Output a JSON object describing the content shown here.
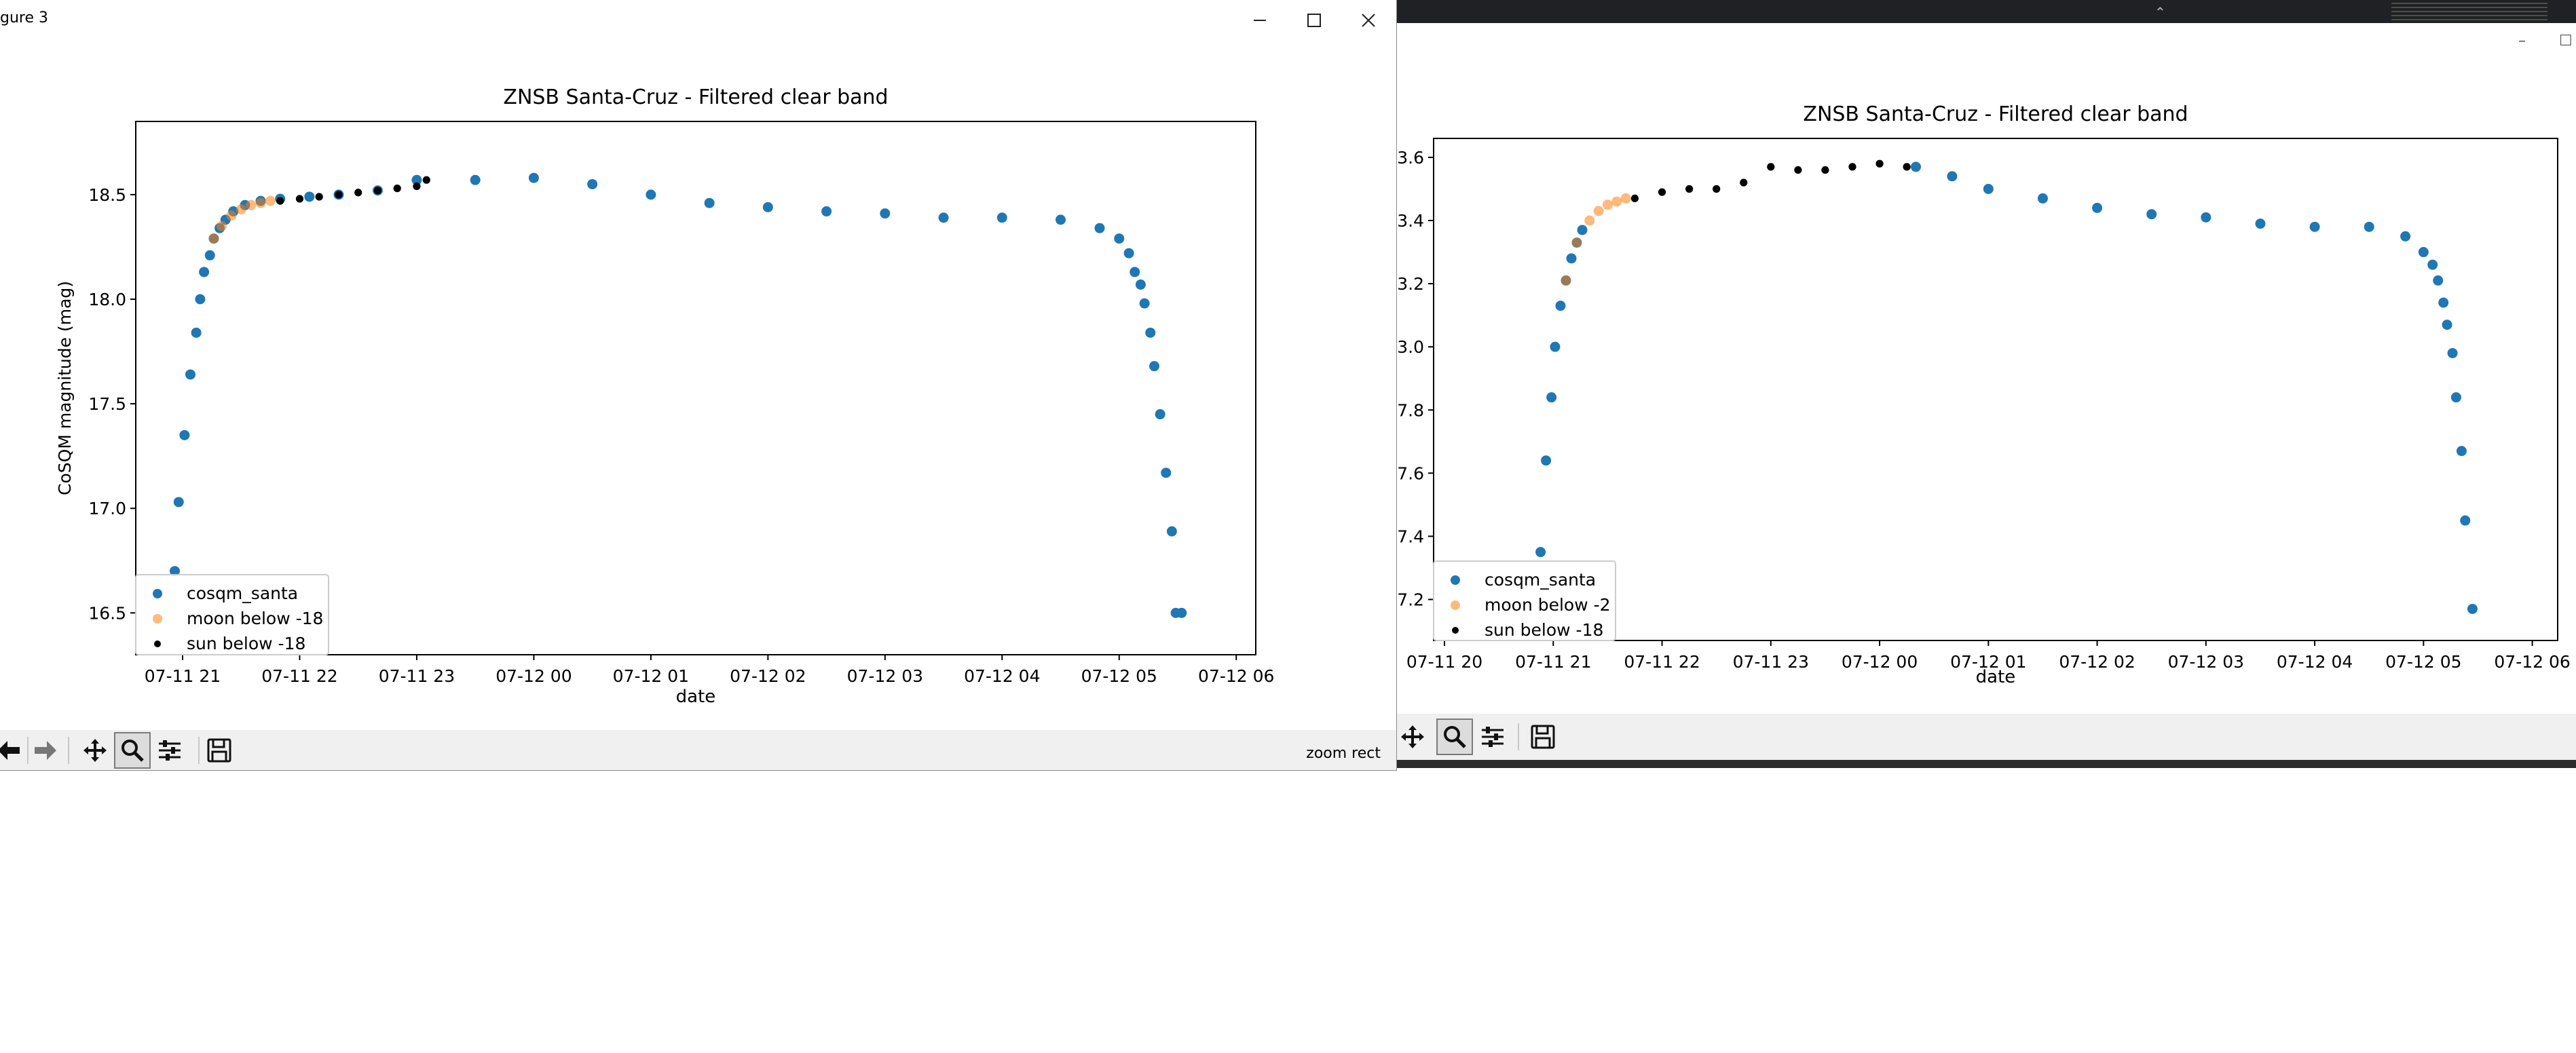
{
  "colors": {
    "series_blue": "#1f77b4",
    "series_orange": "#ff7f0e",
    "series_black": "#000000",
    "toolbar_bg": "#f0f0f0"
  },
  "main_window": {
    "title": "gure 3",
    "buttons": {
      "minimize_icon": "minimize-icon",
      "maximize_icon": "maximize-icon",
      "close_icon": "close-icon"
    },
    "toolbar": {
      "icons": [
        "back-arrow-icon",
        "forward-arrow-icon",
        "pan-move-icon",
        "zoom-magnifier-icon",
        "configure-subplots-icon",
        "save-disk-icon"
      ],
      "status": "zoom rect"
    }
  },
  "secondary_window": {
    "toolbar": {
      "icons": [
        "pan-move-icon",
        "zoom-magnifier-icon",
        "configure-subplots-icon",
        "save-disk-icon"
      ]
    }
  },
  "chart_data": [
    {
      "type": "scatter",
      "title": "ZNSB Santa-Cruz - Filtered clear band",
      "xlabel": "date",
      "ylabel": "CoSQM magnitude (mag)",
      "xlim": [
        "2021-07-11 20:36",
        "2021-07-12 06:10"
      ],
      "ylim": [
        16.3,
        18.85
      ],
      "x_ticks": [
        "07-11 21",
        "07-11 22",
        "07-11 23",
        "07-12 00",
        "07-12 01",
        "07-12 02",
        "07-12 03",
        "07-12 04",
        "07-12 05",
        "07-12 06"
      ],
      "y_ticks": [
        "16.5",
        "17.0",
        "17.5",
        "18.0",
        "18.5"
      ],
      "grid": false,
      "legend_placement": "lower-left",
      "series": [
        {
          "name": "cosqm_santa",
          "color": "#1f77b4",
          "x": [
            "2021-07-11 20:56",
            "2021-07-11 20:58",
            "2021-07-11 21:01",
            "2021-07-11 21:04",
            "2021-07-11 21:07",
            "2021-07-11 21:09",
            "2021-07-11 21:11",
            "2021-07-11 21:14",
            "2021-07-11 21:16",
            "2021-07-11 21:19",
            "2021-07-11 21:22",
            "2021-07-11 21:26",
            "2021-07-11 21:32",
            "2021-07-11 21:40",
            "2021-07-11 21:50",
            "2021-07-11 22:05",
            "2021-07-11 22:20",
            "2021-07-11 22:40",
            "2021-07-11 23:00",
            "2021-07-11 23:30",
            "2021-07-12 00:00",
            "2021-07-12 00:30",
            "2021-07-12 01:00",
            "2021-07-12 01:30",
            "2021-07-12 02:00",
            "2021-07-12 02:30",
            "2021-07-12 03:00",
            "2021-07-12 03:30",
            "2021-07-12 04:00",
            "2021-07-12 04:30",
            "2021-07-12 04:50",
            "2021-07-12 05:00",
            "2021-07-12 05:05",
            "2021-07-12 05:08",
            "2021-07-12 05:11",
            "2021-07-12 05:13",
            "2021-07-12 05:16",
            "2021-07-12 05:18",
            "2021-07-12 05:21",
            "2021-07-12 05:24",
            "2021-07-12 05:27",
            "2021-07-12 05:29",
            "2021-07-12 05:32"
          ],
          "y": [
            16.7,
            17.03,
            17.35,
            17.64,
            17.84,
            18.0,
            18.13,
            18.21,
            18.29,
            18.34,
            18.38,
            18.42,
            18.45,
            18.47,
            18.48,
            18.49,
            18.5,
            18.52,
            18.57,
            18.57,
            18.58,
            18.55,
            18.5,
            18.46,
            18.44,
            18.42,
            18.41,
            18.39,
            18.39,
            18.38,
            18.34,
            18.29,
            18.22,
            18.13,
            18.07,
            17.98,
            17.84,
            17.68,
            17.45,
            17.17,
            16.89,
            16.5,
            16.5
          ]
        },
        {
          "name": "moon below -18",
          "color": "#ff7f0e",
          "x": [
            "2021-07-11 21:16",
            "2021-07-11 21:20",
            "2021-07-11 21:25",
            "2021-07-11 21:30",
            "2021-07-11 21:35",
            "2021-07-11 21:40",
            "2021-07-11 21:45"
          ],
          "y": [
            18.29,
            18.35,
            18.4,
            18.43,
            18.45,
            18.46,
            18.47
          ]
        },
        {
          "name": "sun below -18",
          "color": "#000000",
          "x": [
            "2021-07-11 21:50",
            "2021-07-11 22:00",
            "2021-07-11 22:10",
            "2021-07-11 22:20",
            "2021-07-11 22:30",
            "2021-07-11 22:40",
            "2021-07-11 22:50",
            "2021-07-11 23:00",
            "2021-07-11 23:05"
          ],
          "y": [
            18.47,
            18.48,
            18.49,
            18.5,
            18.51,
            18.52,
            18.53,
            18.54,
            18.57
          ]
        }
      ]
    },
    {
      "type": "scatter",
      "title": "ZNSB Santa-Cruz - Filtered clear band",
      "xlabel": "date",
      "ylabel": "",
      "xlim": [
        "2021-07-11 19:54",
        "2021-07-12 06:14"
      ],
      "ylim": [
        17.07,
        18.66
      ],
      "x_ticks": [
        "07-11 20",
        "07-11 21",
        "07-11 22",
        "07-11 23",
        "07-12 00",
        "07-12 01",
        "07-12 02",
        "07-12 03",
        "07-12 04",
        "07-12 05",
        "07-12 06"
      ],
      "y_ticks": [
        "3.6",
        "3.4",
        "3.2",
        "3.0",
        "7.8",
        "7.6",
        "7.4",
        "7.2"
      ],
      "grid": false,
      "legend_placement": "lower-left",
      "series": [
        {
          "name": "cosqm_santa",
          "color": "#1f77b4",
          "x": [
            "2021-07-11 20:53",
            "2021-07-11 20:56",
            "2021-07-11 20:59",
            "2021-07-11 21:01",
            "2021-07-11 21:04",
            "2021-07-11 21:07",
            "2021-07-11 21:10",
            "2021-07-11 21:13",
            "2021-07-11 21:16",
            "2021-07-12 00:20",
            "2021-07-12 00:40",
            "2021-07-12 01:00",
            "2021-07-12 01:30",
            "2021-07-12 02:00",
            "2021-07-12 02:30",
            "2021-07-12 03:00",
            "2021-07-12 03:30",
            "2021-07-12 04:00",
            "2021-07-12 04:30",
            "2021-07-12 04:50",
            "2021-07-12 05:00",
            "2021-07-12 05:05",
            "2021-07-12 05:08",
            "2021-07-12 05:11",
            "2021-07-12 05:13",
            "2021-07-12 05:16",
            "2021-07-12 05:18",
            "2021-07-12 05:21",
            "2021-07-12 05:23",
            "2021-07-12 05:27"
          ],
          "y": [
            17.35,
            17.64,
            17.84,
            18.0,
            18.13,
            18.21,
            18.28,
            18.33,
            18.37,
            18.57,
            18.54,
            18.5,
            18.47,
            18.44,
            18.42,
            18.41,
            18.39,
            18.38,
            18.38,
            18.35,
            18.3,
            18.26,
            18.21,
            18.14,
            18.07,
            17.98,
            17.84,
            17.67,
            17.45,
            17.17
          ]
        },
        {
          "name": "moon below -2",
          "color": "#ff7f0e",
          "x": [
            "2021-07-11 21:07",
            "2021-07-11 21:13",
            "2021-07-11 21:20",
            "2021-07-11 21:25",
            "2021-07-11 21:30",
            "2021-07-11 21:35",
            "2021-07-11 21:40"
          ],
          "y": [
            18.21,
            18.33,
            18.4,
            18.43,
            18.45,
            18.46,
            18.47
          ]
        },
        {
          "name": "sun below -18",
          "color": "#000000",
          "x": [
            "2021-07-11 21:45",
            "2021-07-11 22:00",
            "2021-07-11 22:15",
            "2021-07-11 22:30",
            "2021-07-11 22:45",
            "2021-07-11 23:00",
            "2021-07-11 23:15",
            "2021-07-11 23:30",
            "2021-07-11 23:45",
            "2021-07-12 00:00",
            "2021-07-12 00:15"
          ],
          "y": [
            18.47,
            18.49,
            18.5,
            18.5,
            18.52,
            18.57,
            18.56,
            18.56,
            18.57,
            18.58,
            18.57
          ]
        }
      ]
    }
  ]
}
